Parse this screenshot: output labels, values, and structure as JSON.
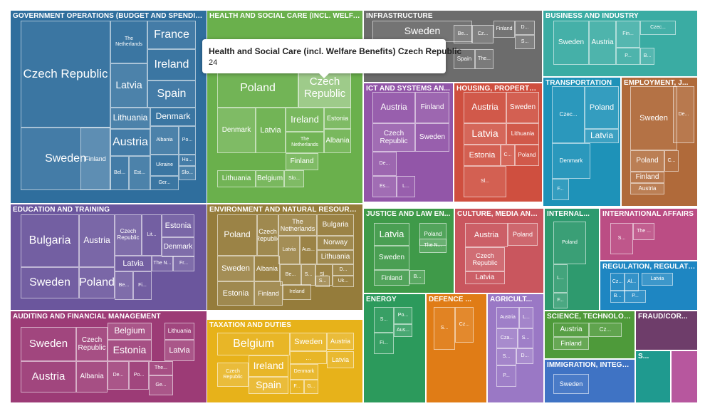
{
  "chart_data": {
    "type": "treemap",
    "tooltip": {
      "title": "Health and Social Care (incl. Welfare Benefits) Czech Republic",
      "value": "24"
    },
    "groups": [
      {
        "name": "GOVERNMENT OPERATIONS (BUDGET AND SPENDING)",
        "color": "#2f6e9d",
        "leaves": [
          {
            "label": "Czech Republic",
            "value": 48
          },
          {
            "label": "Sweden",
            "value": 20
          },
          {
            "label": "Finland",
            "value": 8
          },
          {
            "label": "The Netherlands",
            "value": 7
          },
          {
            "label": "France",
            "value": 11
          },
          {
            "label": "Latvia",
            "value": 10
          },
          {
            "label": "Ireland",
            "value": 10
          },
          {
            "label": "Spain",
            "value": 10
          },
          {
            "label": "Lithuania",
            "value": 6
          },
          {
            "label": "Denmark",
            "value": 7
          },
          {
            "label": "Austria",
            "value": 9
          },
          {
            "label": "Albania",
            "value": 4
          },
          {
            "label": "Po...",
            "value": 3
          },
          {
            "label": "Bel...",
            "value": 3
          },
          {
            "label": "Est...",
            "value": 3
          },
          {
            "label": "Ukraine",
            "value": 3
          },
          {
            "label": "Hu...",
            "value": 2
          },
          {
            "label": "Slo...",
            "value": 2
          },
          {
            "label": "Ger...",
            "value": 3
          }
        ]
      },
      {
        "name": "HEALTH AND SOCIAL CARE (INCL. WELFARE BENEFITS)",
        "color": "#6ab04c",
        "leaves": [
          {
            "label": "Poland",
            "value": 28
          },
          {
            "label": "Czech Republic",
            "value": 24
          },
          {
            "label": "Denmark",
            "value": 10
          },
          {
            "label": "Latvia",
            "value": 9
          },
          {
            "label": "Ireland",
            "value": 9
          },
          {
            "label": "Estonia",
            "value": 7
          },
          {
            "label": "The Netherlands",
            "value": 7
          },
          {
            "label": "Albania",
            "value": 6
          },
          {
            "label": "Finland",
            "value": 6
          },
          {
            "label": "Lithuania",
            "value": 7
          },
          {
            "label": "Belgium",
            "value": 6
          },
          {
            "label": "Slo...",
            "value": 4
          }
        ]
      },
      {
        "name": "INFRASTRUCTURE",
        "color": "#6c6c6c",
        "leaves": [
          {
            "label": "Sweden",
            "value": 16
          },
          {
            "label": "Be...",
            "value": 4
          },
          {
            "label": "Cz...",
            "value": 4
          },
          {
            "label": "Finland",
            "value": 4
          },
          {
            "label": "D...",
            "value": 3
          },
          {
            "label": "S...",
            "value": 3
          },
          {
            "label": "Spain",
            "value": 3
          },
          {
            "label": "The...",
            "value": 3
          }
        ]
      },
      {
        "name": "BUSINESS AND INDUSTRY",
        "color": "#3aaca3",
        "leaves": [
          {
            "label": "Sweden",
            "value": 10
          },
          {
            "label": "Austria",
            "value": 9
          },
          {
            "label": "Fin...",
            "value": 5
          },
          {
            "label": "Czec...",
            "value": 5
          },
          {
            "label": "P...",
            "value": 3
          },
          {
            "label": "B...",
            "value": 3
          }
        ]
      },
      {
        "name": "ICT AND SYSTEMS AN...",
        "color": "#9256a8",
        "leaves": [
          {
            "label": "Austria",
            "value": 9
          },
          {
            "label": "Finland",
            "value": 8
          },
          {
            "label": "Czech Republic",
            "value": 9
          },
          {
            "label": "Sweden",
            "value": 8
          },
          {
            "label": "De...",
            "value": 4
          },
          {
            "label": "Es...",
            "value": 3
          },
          {
            "label": "L...",
            "value": 3
          }
        ]
      },
      {
        "name": "HOUSING, PROPERTY ...",
        "color": "#cf4f3f",
        "leaves": [
          {
            "label": "Austria",
            "value": 8
          },
          {
            "label": "Sweden",
            "value": 7
          },
          {
            "label": "Latvia",
            "value": 9
          },
          {
            "label": "Lithuania",
            "value": 6
          },
          {
            "label": "Estonia",
            "value": 7
          },
          {
            "label": "C...",
            "value": 4
          },
          {
            "label": "Poland",
            "value": 5
          },
          {
            "label": "Sl...",
            "value": 5
          }
        ]
      },
      {
        "name": "TRANSPORTATION",
        "color": "#1e92b8",
        "leaves": [
          {
            "label": "Czec...",
            "value": 7
          },
          {
            "label": "Poland",
            "value": 8
          },
          {
            "label": "Latvia",
            "value": 8
          },
          {
            "label": "Denmark",
            "value": 6
          },
          {
            "label": "F...",
            "value": 4
          }
        ]
      },
      {
        "name": "EMPLOYMENT, J...",
        "color": "#b06a3a",
        "leaves": [
          {
            "label": "Sweden",
            "value": 9
          },
          {
            "label": "De...",
            "value": 4
          },
          {
            "label": "Poland",
            "value": 5
          },
          {
            "label": "C...",
            "value": 3
          },
          {
            "label": "Finland",
            "value": 4
          },
          {
            "label": "Austria",
            "value": 4
          }
        ]
      },
      {
        "name": "EDUCATION AND TRAINING",
        "color": "#6b569d",
        "leaves": [
          {
            "label": "Bulgaria",
            "value": 14
          },
          {
            "label": "Austria",
            "value": 10
          },
          {
            "label": "Czech Republic",
            "value": 7
          },
          {
            "label": "Lit...",
            "value": 3
          },
          {
            "label": "Estonia",
            "value": 7
          },
          {
            "label": "Denmark",
            "value": 6
          },
          {
            "label": "Latvia",
            "value": 7
          },
          {
            "label": "The N...",
            "value": 3
          },
          {
            "label": "Fr...",
            "value": 3
          },
          {
            "label": "Sweden",
            "value": 14
          },
          {
            "label": "Poland",
            "value": 12
          },
          {
            "label": "Be...",
            "value": 3
          },
          {
            "label": "Fi...",
            "value": 3
          }
        ]
      },
      {
        "name": "ENVIRONMENT AND NATURAL RESOURCES",
        "color": "#957c3b",
        "leaves": [
          {
            "label": "Poland",
            "value": 12
          },
          {
            "label": "Czech Republic",
            "value": 9
          },
          {
            "label": "The Netherlands",
            "value": 8
          },
          {
            "label": "Bulgaria",
            "value": 7
          },
          {
            "label": "Norway",
            "value": 6
          },
          {
            "label": "Latvia",
            "value": 4
          },
          {
            "label": "Aus...",
            "value": 4
          },
          {
            "label": "Lithuania",
            "value": 6
          },
          {
            "label": "Sweden",
            "value": 10
          },
          {
            "label": "Albania",
            "value": 8
          },
          {
            "label": "Be...",
            "value": 3
          },
          {
            "label": "S...",
            "value": 3
          },
          {
            "label": "Sl...",
            "value": 3
          },
          {
            "label": "D...",
            "value": 3
          },
          {
            "label": "S...",
            "value": 3
          },
          {
            "label": "Uk...",
            "value": 3
          },
          {
            "label": "Estonia",
            "value": 10
          },
          {
            "label": "Finland",
            "value": 8
          },
          {
            "label": "Ireland",
            "value": 6
          }
        ]
      },
      {
        "name": "JUSTICE AND LAW EN...",
        "color": "#3f9a49",
        "leaves": [
          {
            "label": "Latvia",
            "value": 10
          },
          {
            "label": "Poland",
            "value": 5
          },
          {
            "label": "The N...",
            "value": 5
          },
          {
            "label": "Sweden",
            "value": 8
          },
          {
            "label": "Finland",
            "value": 6
          },
          {
            "label": "B...",
            "value": 3
          }
        ]
      },
      {
        "name": "CULTURE, MEDIA AND ...",
        "color": "#c9565e",
        "leaves": [
          {
            "label": "Austria",
            "value": 10
          },
          {
            "label": "Poland",
            "value": 7
          },
          {
            "label": "Czech Republic",
            "value": 9
          },
          {
            "label": "Latvia",
            "value": 8
          }
        ]
      },
      {
        "name": "INTERNAL...",
        "color": "#2e9a6e",
        "leaves": [
          {
            "label": "Poland",
            "value": 8
          },
          {
            "label": "L...",
            "value": 5
          },
          {
            "label": "F...",
            "value": 5
          }
        ]
      },
      {
        "name": "INTERNATIONAL AFFAIRS",
        "color": "#bb4d84",
        "leaves": [
          {
            "label": "S...",
            "value": 4
          },
          {
            "label": "The ...",
            "value": 4
          }
        ]
      },
      {
        "name": "REGULATION, REGULATOR...",
        "color": "#1e86c2",
        "leaves": [
          {
            "label": "Cz...",
            "value": 3
          },
          {
            "label": "Al...",
            "value": 3
          },
          {
            "label": "Latvia",
            "value": 3
          },
          {
            "label": "B...",
            "value": 2
          },
          {
            "label": "P...",
            "value": 2
          }
        ]
      },
      {
        "name": "TAXATION AND DUTIES",
        "color": "#e7b21a",
        "leaves": [
          {
            "label": "Belgium",
            "value": 14
          },
          {
            "label": "Sweden",
            "value": 8
          },
          {
            "label": "Austria",
            "value": 5
          },
          {
            "label": "...",
            "value": 4
          },
          {
            "label": "Latvia",
            "value": 5
          },
          {
            "label": "Czech Republic",
            "value": 8
          },
          {
            "label": "Ireland",
            "value": 8
          },
          {
            "label": "Denmark",
            "value": 5
          },
          {
            "label": "Spain",
            "value": 8
          },
          {
            "label": "F...",
            "value": 3
          },
          {
            "label": "G...",
            "value": 3
          }
        ]
      },
      {
        "name": "AUDITING AND FINANCIAL MANAGEMENT",
        "color": "#9c3b76",
        "leaves": [
          {
            "label": "Sweden",
            "value": 14
          },
          {
            "label": "Czech Republic",
            "value": 10
          },
          {
            "label": "Belgium",
            "value": 8
          },
          {
            "label": "Lithuania",
            "value": 6
          },
          {
            "label": "Estonia",
            "value": 8
          },
          {
            "label": "Latvia",
            "value": 6
          },
          {
            "label": "Austria",
            "value": 14
          },
          {
            "label": "Albania",
            "value": 10
          },
          {
            "label": "De...",
            "value": 4
          },
          {
            "label": "Po...",
            "value": 4
          },
          {
            "label": "The...",
            "value": 4
          },
          {
            "label": "Ge...",
            "value": 3
          }
        ]
      },
      {
        "name": "ENERGY",
        "color": "#2c9a5c",
        "leaves": [
          {
            "label": "S...",
            "value": 5
          },
          {
            "label": "Po...",
            "value": 4
          },
          {
            "label": "Aus...",
            "value": 4
          },
          {
            "label": "Fi...",
            "value": 5
          }
        ]
      },
      {
        "name": "DEFENCE ...",
        "color": "#e07c16",
        "leaves": [
          {
            "label": "S...",
            "value": 7
          },
          {
            "label": "Cz...",
            "value": 6
          }
        ]
      },
      {
        "name": "AGRICULT...",
        "color": "#9a78c5",
        "leaves": [
          {
            "label": "Austria",
            "value": 4
          },
          {
            "label": "L...",
            "value": 3
          },
          {
            "label": "Cza...",
            "value": 4
          },
          {
            "label": "S...",
            "value": 3
          },
          {
            "label": "S...",
            "value": 3
          },
          {
            "label": "D...",
            "value": 3
          },
          {
            "label": "P...",
            "value": 2
          }
        ]
      },
      {
        "name": "SCIENCE, TECHNOLOG...",
        "color": "#4e9a3a",
        "leaves": [
          {
            "label": "Austria",
            "value": 5
          },
          {
            "label": "Cz...",
            "value": 4
          },
          {
            "label": "Finland",
            "value": 4
          }
        ]
      },
      {
        "name": "FRAUD/COR...",
        "color": "#6e3d6a",
        "leaves": []
      },
      {
        "name": "IMMIGRATION, INTEGR...",
        "color": "#3f73c4",
        "leaves": [
          {
            "label": "Sweden",
            "value": 6
          }
        ]
      },
      {
        "name": "S...",
        "color": "#1f9a8f",
        "leaves": []
      },
      {
        "name": "",
        "color": "#b7579e",
        "leaves": []
      }
    ]
  }
}
